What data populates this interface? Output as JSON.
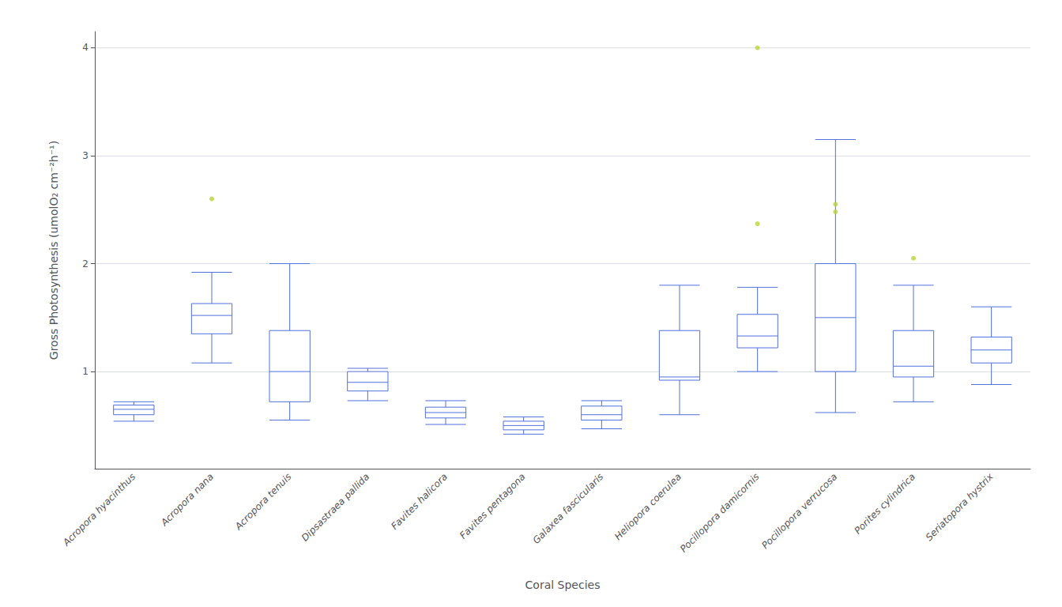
{
  "chart_data": {
    "type": "boxplot",
    "xlabel": "Coral Species",
    "ylabel": "Gross Photosynthesis (umolO₂ cm⁻²h⁻¹)",
    "categories": [
      "Acropora hyacinthus",
      "Acropora nana",
      "Acropora tenuis",
      "Dipsastraea pallida",
      "Favites halicora",
      "Favites pentagona",
      "Galaxea fascicularis",
      "Heliopora coerulea",
      "Pocillopora damicornis",
      "Pocillopora verrucosa",
      "Porites cylindrica",
      "Seriatopora hystrix"
    ],
    "values": [
      [
        0.54,
        0.6,
        0.65,
        0.69,
        0.72
      ],
      [
        1.08,
        1.35,
        1.52,
        1.63,
        1.92
      ],
      [
        0.55,
        0.72,
        1.0,
        1.38,
        2.0
      ],
      [
        0.73,
        0.82,
        0.9,
        1.0,
        1.03
      ],
      [
        0.51,
        0.57,
        0.62,
        0.67,
        0.73
      ],
      [
        0.42,
        0.46,
        0.5,
        0.54,
        0.58
      ],
      [
        0.47,
        0.55,
        0.6,
        0.68,
        0.73
      ],
      [
        0.6,
        0.92,
        0.95,
        1.38,
        1.8
      ],
      [
        1.0,
        1.22,
        1.33,
        1.53,
        1.78
      ],
      [
        0.62,
        1.0,
        1.5,
        2.0,
        3.15
      ],
      [
        0.72,
        0.95,
        1.05,
        1.38,
        1.8
      ],
      [
        0.88,
        1.08,
        1.2,
        1.32,
        1.6
      ]
    ],
    "fliers": [
      [],
      [
        2.6
      ],
      [],
      [],
      [],
      [],
      [],
      [],
      [
        2.37,
        4.0
      ],
      [
        2.48,
        2.55
      ],
      [
        2.05
      ],
      []
    ],
    "ylim": [
      0.1,
      4.15
    ],
    "yticks": [
      1,
      2,
      3,
      4
    ],
    "grid": true
  }
}
